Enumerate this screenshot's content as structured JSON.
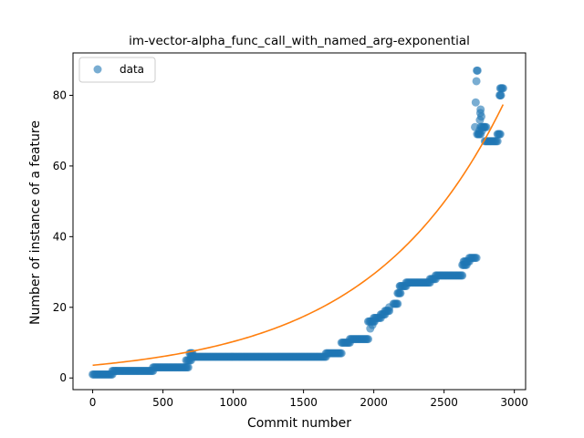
{
  "chart_data": {
    "type": "scatter",
    "title": "im-vector-alpha_func_call_with_named_arg-exponential",
    "xlabel": "Commit number",
    "ylabel": "Number of instance of a feature",
    "xlim": [
      -140,
      3080
    ],
    "ylim": [
      -3.3,
      92
    ],
    "xticks": [
      0,
      500,
      1000,
      1500,
      2000,
      2500,
      3000
    ],
    "yticks": [
      0,
      20,
      40,
      60,
      80
    ],
    "grid": false,
    "legend": {
      "placement": "top-left",
      "entries": [
        "data"
      ]
    },
    "colors": {
      "data": "#1f77b4",
      "fit": "#ff7f0e"
    },
    "series": [
      {
        "name": "data",
        "kind": "scatter",
        "segments": [
          {
            "x0": 0,
            "x1": 140,
            "y": 1
          },
          {
            "x0": 140,
            "x1": 430,
            "y": 2
          },
          {
            "x0": 430,
            "x1": 680,
            "y": 3
          },
          {
            "x0": 665,
            "x1": 700,
            "y": 5
          },
          {
            "x0": 690,
            "x1": 710,
            "y": 7
          },
          {
            "x0": 700,
            "x1": 1660,
            "y": 6
          },
          {
            "x0": 1660,
            "x1": 1770,
            "y": 7
          },
          {
            "x0": 1770,
            "x1": 1830,
            "y": 10
          },
          {
            "x0": 1830,
            "x1": 1960,
            "y": 11
          },
          {
            "x0": 1960,
            "x1": 2000,
            "y": 16
          },
          {
            "x0": 2000,
            "x1": 2050,
            "y": 17
          },
          {
            "x0": 2050,
            "x1": 2080,
            "y": 18
          },
          {
            "x0": 2080,
            "x1": 2110,
            "y": 19
          },
          {
            "x0": 2140,
            "x1": 2170,
            "y": 21
          },
          {
            "x0": 2170,
            "x1": 2190,
            "y": 24
          },
          {
            "x0": 2190,
            "x1": 2230,
            "y": 26
          },
          {
            "x0": 2230,
            "x1": 2400,
            "y": 27
          },
          {
            "x0": 2400,
            "x1": 2440,
            "y": 28
          },
          {
            "x0": 2440,
            "x1": 2630,
            "y": 29
          },
          {
            "x0": 2630,
            "x1": 2660,
            "y": 32
          },
          {
            "x0": 2640,
            "x1": 2680,
            "y": 33
          },
          {
            "x0": 2680,
            "x1": 2730,
            "y": 34
          },
          {
            "x0": 2735,
            "x1": 2760,
            "y": 69
          },
          {
            "x0": 2760,
            "x1": 2800,
            "y": 71
          },
          {
            "x0": 2790,
            "x1": 2880,
            "y": 67
          },
          {
            "x0": 2880,
            "x1": 2900,
            "y": 69
          },
          {
            "x0": 2895,
            "x1": 2905,
            "y": 80
          },
          {
            "x0": 2900,
            "x1": 2920,
            "y": 82
          }
        ],
        "points": [
          [
            1975,
            14
          ],
          [
            1990,
            15
          ],
          [
            2005,
            16
          ],
          [
            2110,
            20
          ],
          [
            2185,
            26
          ],
          [
            2720,
            71
          ],
          [
            2725,
            78
          ],
          [
            2730,
            84
          ],
          [
            2733,
            87
          ],
          [
            2738,
            87
          ],
          [
            2745,
            69
          ],
          [
            2752,
            70
          ],
          [
            2755,
            73
          ],
          [
            2758,
            75
          ],
          [
            2760,
            76
          ],
          [
            2765,
            74
          ],
          [
            2770,
            70
          ],
          [
            2785,
            71
          ]
        ]
      },
      {
        "name": "",
        "kind": "line",
        "model": {
          "a": 3.6,
          "b": 3.068,
          "x_scale": 2920
        },
        "domain": [
          0,
          2920
        ]
      }
    ]
  }
}
